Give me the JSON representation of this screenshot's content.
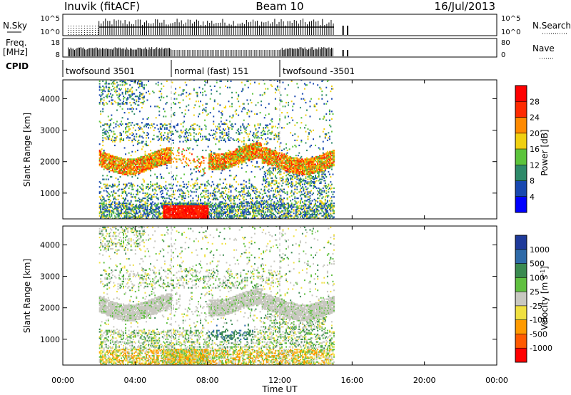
{
  "header": {
    "station": "Inuvik (fitACF)",
    "beam": "Beam 10",
    "date": "16/Jul/2013"
  },
  "panels": {
    "nsky": {
      "left_label": "N.Sky",
      "left_ticks": [
        "10^5",
        "10^0"
      ],
      "right_ticks": [
        "10^5",
        "10^0"
      ],
      "right_label": "N.Search"
    },
    "freq": {
      "left_label_top": "Freq.",
      "left_label_unit": "[MHz]",
      "left_ticks": [
        "18",
        "8"
      ],
      "right_ticks": [
        "80",
        "0"
      ],
      "right_label": "Nave"
    },
    "cpid": {
      "label": "CPID",
      "segments": [
        {
          "text": "twofsound 3501",
          "start_h": 0,
          "end_h": 6
        },
        {
          "text": "normal (fast) 151",
          "start_h": 6,
          "end_h": 12
        },
        {
          "text": "twofsound -3501",
          "start_h": 12,
          "end_h": 15
        }
      ]
    }
  },
  "x_axis": {
    "ticks": [
      "00:00",
      "04:00",
      "08:00",
      "12:00",
      "16:00",
      "20:00",
      "00:00"
    ],
    "label": "Time UT"
  },
  "chart_data": [
    {
      "type": "heatmap",
      "name": "power",
      "xlabel": "Time UT",
      "ylabel": "Slant Range [km]",
      "xlim": [
        0,
        24
      ],
      "ylim": [
        180,
        4600
      ],
      "y_ticks": [
        "1000",
        "2000",
        "3000",
        "4000"
      ],
      "colorbar": {
        "label": "Power [dB]",
        "ticks": [
          "4",
          "8",
          "12",
          "16",
          "20",
          "24",
          "28"
        ],
        "colors": [
          "#0000ff",
          "#1848b0",
          "#2e8a6a",
          "#5cc43c",
          "#f0d010",
          "#ff8a00",
          "#ff2a00",
          "#ff0000"
        ]
      },
      "data_extent_h": [
        2.0,
        15.0
      ],
      "bands": [
        {
          "t": [
            2.0,
            15.0
          ],
          "r": [
            1800,
            2400
          ],
          "level": "high"
        },
        {
          "t": [
            5.5,
            8.0
          ],
          "r": [
            200,
            600
          ],
          "level": "very-high"
        },
        {
          "t": [
            2.0,
            15.0
          ],
          "r": [
            200,
            1200
          ],
          "level": "medium"
        },
        {
          "t": [
            2.0,
            4.5
          ],
          "r": [
            3800,
            4500
          ],
          "level": "low"
        }
      ]
    },
    {
      "type": "heatmap",
      "name": "velocity",
      "xlabel": "Time UT",
      "ylabel": "Slant Range [km]",
      "xlim": [
        0,
        24
      ],
      "ylim": [
        180,
        4600
      ],
      "y_ticks": [
        "1000",
        "2000",
        "3000",
        "4000"
      ],
      "colorbar": {
        "label": "Velocity [m s",
        "label_sup": "-1",
        "label_close": "]",
        "ticks": [
          "1000",
          "500",
          "100",
          "25",
          "-25",
          "-100",
          "-500",
          "-1000"
        ],
        "colors": [
          "#1e3a9a",
          "#2e6aa8",
          "#3a8a50",
          "#60c040",
          "#c8c8c0",
          "#f0e040",
          "#ff9a00",
          "#ff5a00",
          "#ff0000"
        ]
      },
      "data_extent_h": [
        2.0,
        15.0
      ],
      "bands": [
        {
          "t": [
            2.0,
            15.0
          ],
          "r": [
            1800,
            2600
          ],
          "level": "near-zero"
        },
        {
          "t": [
            8.0,
            10.5
          ],
          "r": [
            900,
            1500
          ],
          "level": "toward"
        },
        {
          "t": [
            2.0,
            15.0
          ],
          "r": [
            200,
            800
          ],
          "level": "mixed"
        }
      ]
    }
  ]
}
